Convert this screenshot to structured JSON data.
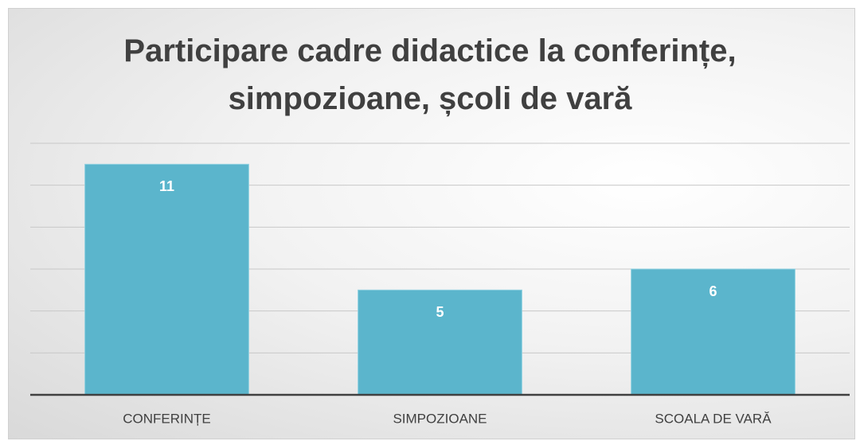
{
  "chart_data": {
    "type": "bar",
    "title": "Participare cadre didactice la conferințe, simpozioane, școli de vară",
    "categories": [
      "CONFERINȚE",
      "SIMPOZIOANE",
      "SCOALA DE VARĂ"
    ],
    "values": [
      11,
      5,
      6
    ],
    "color": "#5bb5cc",
    "ylim": [
      0,
      12
    ],
    "yticks": [
      0,
      2,
      4,
      6,
      8,
      10,
      12
    ],
    "grid": true
  }
}
